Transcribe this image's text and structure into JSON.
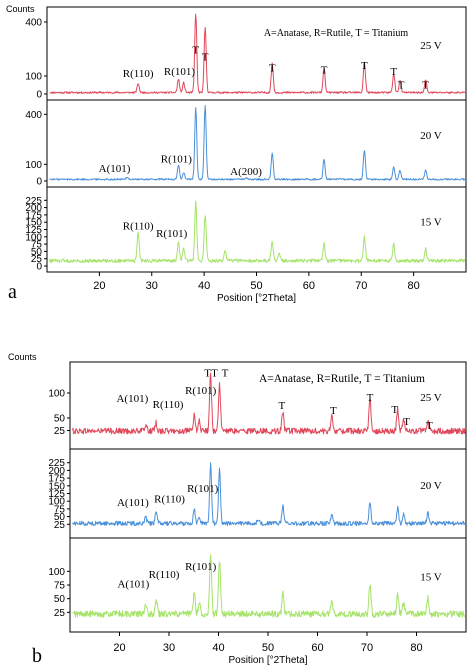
{
  "chart_data": [
    {
      "type": "line",
      "panel_label": "a",
      "ylabel": "Counts",
      "xlabel": "Position [°2Theta]",
      "xlim": [
        10,
        90
      ],
      "x_ticks": [
        "20",
        "30",
        "40",
        "50",
        "60",
        "70",
        "80"
      ],
      "legend_text": "A=Anatase, R=Rutile, T = Titanium",
      "subplots": [
        {
          "label": "25 V",
          "color": "#e0475a",
          "ylim": [
            0,
            450
          ],
          "y_ticks": [
            "0",
            "100",
            "400"
          ],
          "baseline": 8,
          "noise": 5,
          "peaks": [
            [
              27.4,
              50
            ],
            [
              35.1,
              75
            ],
            [
              36.1,
              55
            ],
            [
              38.4,
              440
            ],
            [
              40.2,
              360
            ],
            [
              53.0,
              160
            ],
            [
              62.9,
              135
            ],
            [
              70.6,
              170
            ],
            [
              76.2,
              105
            ],
            [
              77.4,
              65
            ],
            [
              82.3,
              70
            ]
          ],
          "annotations": [
            {
              "text": "R(110)",
              "x": 27.4,
              "y": 95
            },
            {
              "text": "R(101)",
              "x": 35.3,
              "y": 105
            },
            {
              "text": "T",
              "x": 38.4,
              "y": 225
            },
            {
              "text": "T",
              "x": 40.2,
              "y": 185
            },
            {
              "text": "T",
              "x": 53.0,
              "y": 125
            },
            {
              "text": "T",
              "x": 62.9,
              "y": 115
            },
            {
              "text": "T",
              "x": 70.6,
              "y": 140
            },
            {
              "text": "T",
              "x": 76.2,
              "y": 105
            },
            {
              "text": "T",
              "x": 77.6,
              "y": 30
            },
            {
              "text": "T",
              "x": 82.3,
              "y": 30
            }
          ]
        },
        {
          "label": "20 V",
          "color": "#4a90d9",
          "ylim": [
            0,
            450
          ],
          "y_ticks": [
            "0",
            "100",
            "400"
          ],
          "baseline": 10,
          "noise": 5,
          "peaks": [
            [
              25.3,
              14
            ],
            [
              35.1,
              85
            ],
            [
              36.1,
              40
            ],
            [
              38.4,
              430
            ],
            [
              40.2,
              440
            ],
            [
              48.0,
              10
            ],
            [
              53.0,
              160
            ],
            [
              62.9,
              120
            ],
            [
              70.6,
              175
            ],
            [
              76.2,
              80
            ],
            [
              77.4,
              55
            ],
            [
              82.3,
              55
            ]
          ],
          "annotations": [
            {
              "text": "A(101)",
              "x": 22.9,
              "y": 55
            },
            {
              "text": "R(101)",
              "x": 34.7,
              "y": 110
            },
            {
              "text": "A(200)",
              "x": 48.0,
              "y": 35
            }
          ]
        },
        {
          "label": "15 V",
          "color": "#a6e36b",
          "ylim": [
            0,
            250
          ],
          "y_ticks": [
            "0",
            "25",
            "50",
            "75",
            "100",
            "125",
            "150",
            "175",
            "200",
            "225"
          ],
          "baseline": 18,
          "noise": 6,
          "peaks": [
            [
              27.4,
              95
            ],
            [
              35.1,
              62
            ],
            [
              36.1,
              45
            ],
            [
              38.4,
              200
            ],
            [
              40.2,
              160
            ],
            [
              44.0,
              35
            ],
            [
              53.0,
              65
            ],
            [
              54.3,
              30
            ],
            [
              62.9,
              60
            ],
            [
              70.6,
              80
            ],
            [
              76.2,
              55
            ],
            [
              82.3,
              40
            ]
          ],
          "annotations": [
            {
              "text": "R(110)",
              "x": 27.4,
              "y": 125
            },
            {
              "text": "R(101)",
              "x": 33.8,
              "y": 100
            }
          ]
        }
      ]
    },
    {
      "type": "line",
      "panel_label": "b",
      "ylabel": "Counts",
      "xlabel": "Position [°2Theta]",
      "xlim": [
        10,
        90
      ],
      "x_ticks": [
        "20",
        "30",
        "40",
        "50",
        "60",
        "70",
        "80"
      ],
      "legend_text": "A=Anatase, R=Rutile, T = Titanium",
      "subplots": [
        {
          "label": "25 V",
          "color": "#e0475a",
          "ylim": [
            0,
            150
          ],
          "y_ticks": [
            "25",
            "50",
            "100"
          ],
          "baseline": 24,
          "noise": 6,
          "peaks": [
            [
              25.3,
              14
            ],
            [
              27.4,
              16
            ],
            [
              35.1,
              30
            ],
            [
              36.1,
              20
            ],
            [
              38.4,
              115
            ],
            [
              40.2,
              95
            ],
            [
              53.0,
              38
            ],
            [
              62.9,
              28
            ],
            [
              70.6,
              65
            ],
            [
              76.2,
              42
            ],
            [
              77.4,
              25
            ],
            [
              82.3,
              20
            ]
          ],
          "annotations": [
            {
              "text": "A(101)",
              "x": 22.6,
              "y": 82
            },
            {
              "text": "R(110)",
              "x": 29.8,
              "y": 70
            },
            {
              "text": "R(101)",
              "x": 36.4,
              "y": 98
            },
            {
              "text": "T",
              "x": 37.8,
              "y": 133
            },
            {
              "text": "T",
              "x": 39.2,
              "y": 133
            },
            {
              "text": "T",
              "x": 41.3,
              "y": 133
            },
            {
              "text": "T",
              "x": 52.8,
              "y": 68
            },
            {
              "text": "T",
              "x": 63.2,
              "y": 58
            },
            {
              "text": "T",
              "x": 70.6,
              "y": 84
            },
            {
              "text": "T",
              "x": 75.6,
              "y": 60
            },
            {
              "text": "T",
              "x": 78.0,
              "y": 36
            },
            {
              "text": "T",
              "x": 82.6,
              "y": 28
            }
          ]
        },
        {
          "label": "20 V",
          "color": "#4a90d9",
          "ylim": [
            0,
            250
          ],
          "y_ticks": [
            "25",
            "50",
            "75",
            "100",
            "125",
            "150",
            "175",
            "200",
            "225"
          ],
          "baseline": 28,
          "noise": 7,
          "peaks": [
            [
              25.3,
              18
            ],
            [
              27.4,
              35
            ],
            [
              35.1,
              50
            ],
            [
              36.1,
              25
            ],
            [
              38.4,
              190
            ],
            [
              40.2,
              175
            ],
            [
              48.0,
              12
            ],
            [
              53.0,
              60
            ],
            [
              62.9,
              35
            ],
            [
              70.6,
              70
            ],
            [
              76.2,
              50
            ],
            [
              77.4,
              30
            ],
            [
              82.3,
              35
            ]
          ],
          "annotations": [
            {
              "text": "A(101)",
              "x": 22.7,
              "y": 85
            },
            {
              "text": "R(110)",
              "x": 30.1,
              "y": 95
            },
            {
              "text": "R(101)",
              "x": 36.8,
              "y": 130
            }
          ]
        },
        {
          "label": "15 V",
          "color": "#a6e36b",
          "ylim": [
            0,
            150
          ],
          "y_ticks": [
            "25",
            "50",
            "75",
            "100"
          ],
          "baseline": 22,
          "noise": 6,
          "peaks": [
            [
              25.3,
              16
            ],
            [
              27.4,
              28
            ],
            [
              35.1,
              40
            ],
            [
              36.1,
              22
            ],
            [
              38.4,
              110
            ],
            [
              40.2,
              100
            ],
            [
              53.0,
              38
            ],
            [
              62.9,
              25
            ],
            [
              70.6,
              55
            ],
            [
              76.2,
              35
            ],
            [
              77.4,
              22
            ],
            [
              82.3,
              28
            ]
          ],
          "annotations": [
            {
              "text": "A(101)",
              "x": 22.8,
              "y": 70
            },
            {
              "text": "R(110)",
              "x": 29.0,
              "y": 88
            },
            {
              "text": "R(101)",
              "x": 36.4,
              "y": 102
            }
          ]
        }
      ]
    }
  ]
}
